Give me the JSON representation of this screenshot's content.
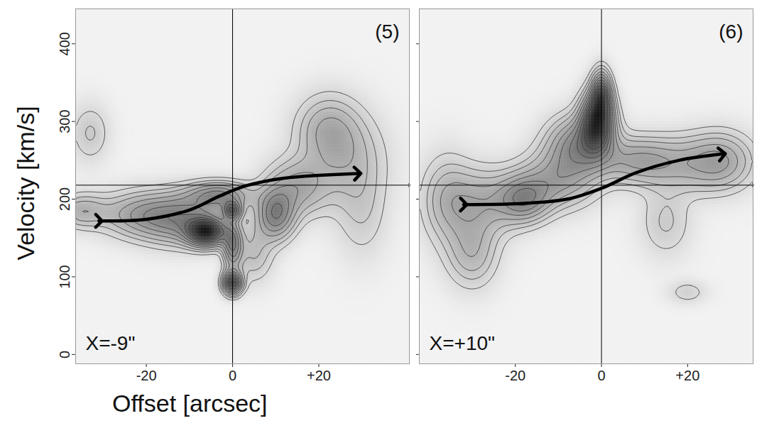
{
  "chart_data": [
    {
      "type": "contour",
      "y_label": "Velocity [km/s]",
      "x_label": "Offset [arcsec]",
      "panel_label": "(5)",
      "annotation": "X=-9\"",
      "xlim": [
        -36.4,
        41
      ],
      "ylim": [
        -12,
        445
      ],
      "xticks": [
        -20,
        0,
        {
          "value": 20,
          "label": "+20"
        }
      ],
      "yticks": [
        0,
        100,
        200,
        300,
        400
      ],
      "reference_lines": {
        "x": 0,
        "v": 218
      },
      "arrow": [
        [
          -31,
          172
        ],
        [
          -20,
          174
        ],
        [
          -10,
          186
        ],
        [
          -3,
          204
        ],
        [
          3,
          217
        ],
        [
          12,
          227
        ],
        [
          29,
          233
        ]
      ],
      "contour_levels": [
        0.08,
        0.14,
        0.2,
        0.28,
        0.36,
        0.45,
        0.55,
        0.65,
        0.75,
        0.85
      ],
      "emission": [
        {
          "x": -6,
          "v": 158,
          "sx": 3,
          "sv": 12,
          "peak": 1.0
        },
        {
          "x": 0,
          "v": 92,
          "sx": 1.5,
          "sv": 10,
          "peak": 0.85
        },
        {
          "x": 0,
          "v": 185,
          "sx": 1.5,
          "sv": 8,
          "peak": 0.6
        },
        {
          "x": 0,
          "v": 140,
          "sx": 1.5,
          "sv": 20,
          "peak": 0.5
        },
        {
          "x": -12,
          "v": 175,
          "sx": 6,
          "sv": 22,
          "peak": 0.45
        },
        {
          "x": -3,
          "v": 205,
          "sx": 5,
          "sv": 12,
          "peak": 0.45
        },
        {
          "x": 10,
          "v": 180,
          "sx": 3,
          "sv": 22,
          "peak": 0.5
        },
        {
          "x": 15,
          "v": 215,
          "sx": 5,
          "sv": 25,
          "peak": 0.3
        },
        {
          "x": 22,
          "v": 290,
          "sx": 5,
          "sv": 30,
          "peak": 0.25
        },
        {
          "x": 27,
          "v": 250,
          "sx": 6,
          "sv": 40,
          "peak": 0.2
        },
        {
          "x": -22,
          "v": 180,
          "sx": 6,
          "sv": 20,
          "peak": 0.3
        },
        {
          "x": -35,
          "v": 185,
          "sx": 4,
          "sv": 15,
          "peak": 0.25
        },
        {
          "x": -33,
          "v": 285,
          "sx": 3,
          "sv": 25,
          "peak": 0.15
        },
        {
          "x": 30,
          "v": 180,
          "sx": 4,
          "sv": 40,
          "peak": 0.12
        },
        {
          "x": 5,
          "v": 130,
          "sx": 3,
          "sv": 25,
          "peak": 0.2
        }
      ]
    },
    {
      "type": "contour",
      "panel_label": "(6)",
      "annotation": "X=+10\"",
      "xlim": [
        -42.3,
        35.2
      ],
      "ylim": [
        -12,
        445
      ],
      "xticks": [
        -20,
        0,
        {
          "value": 20,
          "label": "+20"
        }
      ],
      "yticks": [
        0,
        100,
        200,
        300,
        400
      ],
      "tick_labels": "x",
      "reference_lines": {
        "x": 0,
        "v": 218
      },
      "arrow": [
        [
          -32,
          193
        ],
        [
          -20,
          194
        ],
        [
          -8,
          200
        ],
        [
          0,
          214
        ],
        [
          8,
          234
        ],
        [
          18,
          250
        ],
        [
          28,
          258
        ]
      ],
      "contour_levels": [
        0.08,
        0.14,
        0.2,
        0.28,
        0.36,
        0.45,
        0.55,
        0.65,
        0.75,
        0.85
      ],
      "emission": [
        {
          "x": -1,
          "v": 300,
          "sx": 2.5,
          "sv": 25,
          "peak": 1.0
        },
        {
          "x": 0,
          "v": 335,
          "sx": 1.5,
          "sv": 20,
          "peak": 0.7
        },
        {
          "x": -5,
          "v": 270,
          "sx": 5,
          "sv": 25,
          "peak": 0.5
        },
        {
          "x": -18,
          "v": 200,
          "sx": 4,
          "sv": 20,
          "peak": 0.45
        },
        {
          "x": -10,
          "v": 225,
          "sx": 6,
          "sv": 25,
          "peak": 0.35
        },
        {
          "x": -28,
          "v": 195,
          "sx": 6,
          "sv": 30,
          "peak": 0.3
        },
        {
          "x": -30,
          "v": 130,
          "sx": 4,
          "sv": 30,
          "peak": 0.25
        },
        {
          "x": -36,
          "v": 200,
          "sx": 4,
          "sv": 40,
          "peak": 0.2
        },
        {
          "x": 8,
          "v": 250,
          "sx": 6,
          "sv": 20,
          "peak": 0.3
        },
        {
          "x": 20,
          "v": 245,
          "sx": 8,
          "sv": 25,
          "peak": 0.25
        },
        {
          "x": 28,
          "v": 250,
          "sx": 5,
          "sv": 25,
          "peak": 0.25
        },
        {
          "x": 15,
          "v": 170,
          "sx": 4,
          "sv": 30,
          "peak": 0.15
        },
        {
          "x": 20,
          "v": 80,
          "sx": 3,
          "sv": 10,
          "peak": 0.12
        }
      ]
    }
  ]
}
